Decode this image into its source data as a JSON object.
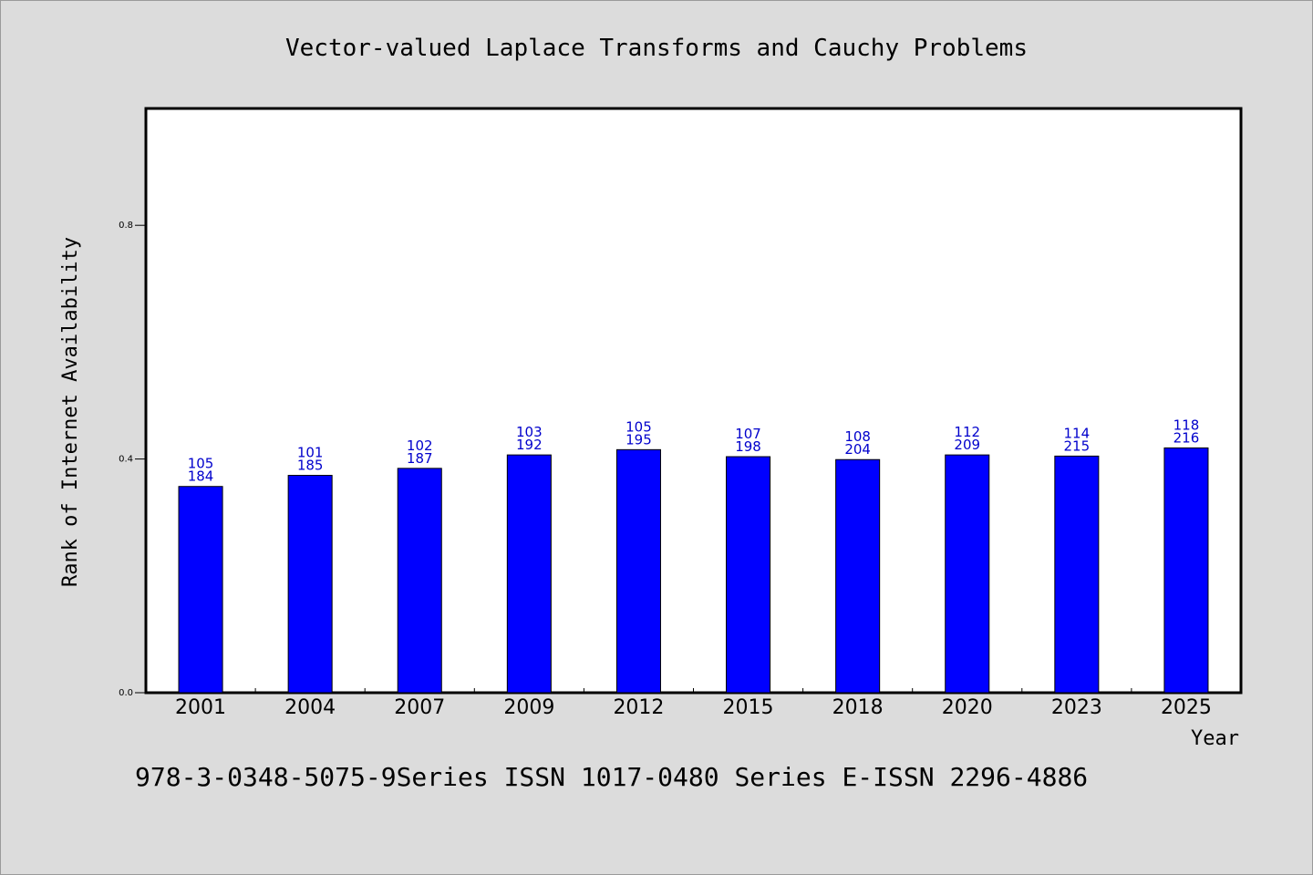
{
  "footer_text": "978-3-0348-5075-9Series ISSN 1017-0480 Series E-ISSN 2296-4886",
  "colors": {
    "bar": "#0000ff",
    "data_label": "#0000cc",
    "background": "#dcdcdc",
    "plot_background": "#ffffff"
  },
  "chart_data": {
    "type": "bar",
    "title": "Vector-valued Laplace Transforms and Cauchy Problems",
    "xlabel": "Year",
    "ylabel": "Rank of Internet Availability",
    "categories": [
      "2001",
      "2004",
      "2007",
      "2009",
      "2012",
      "2015",
      "2018",
      "2020",
      "2023",
      "2025"
    ],
    "values": [
      0.353,
      0.372,
      0.384,
      0.407,
      0.416,
      0.404,
      0.399,
      0.407,
      0.405,
      0.419
    ],
    "data_labels_top": [
      "105",
      "101",
      "102",
      "103",
      "105",
      "107",
      "108",
      "112",
      "114",
      "118"
    ],
    "data_labels_bottom": [
      "184",
      "185",
      "187",
      "192",
      "195",
      "198",
      "204",
      "209",
      "215",
      "216"
    ],
    "yticks": [
      0.0,
      0.4,
      0.8
    ],
    "ytick_labels": [
      "0.0",
      "0.4",
      "0.8"
    ],
    "ylim": [
      0,
      1.0
    ],
    "grid": false,
    "legend": "none"
  }
}
